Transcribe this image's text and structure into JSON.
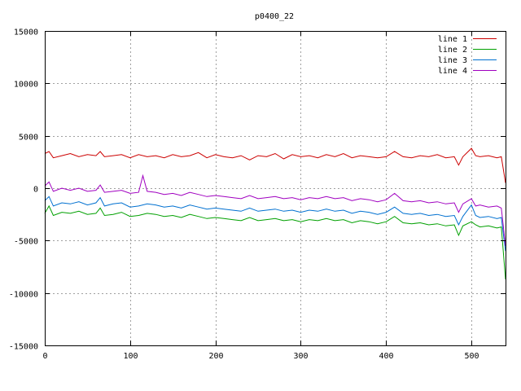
{
  "chart_data": {
    "type": "line",
    "title": "p0400_22",
    "xlabel": "",
    "ylabel": "",
    "xlim": [
      0,
      540
    ],
    "ylim": [
      -15000,
      15000
    ],
    "xticks": [
      0,
      100,
      200,
      300,
      400,
      500
    ],
    "yticks": [
      -15000,
      -10000,
      -5000,
      0,
      5000,
      10000,
      15000
    ],
    "grid": true,
    "legend": "top-right",
    "series": [
      {
        "name": "line 1",
        "color": "#cc0000",
        "x": [
          0,
          5,
          10,
          20,
          30,
          40,
          50,
          60,
          65,
          70,
          80,
          90,
          100,
          110,
          120,
          130,
          140,
          150,
          160,
          170,
          180,
          190,
          200,
          210,
          220,
          230,
          240,
          250,
          260,
          270,
          280,
          290,
          300,
          310,
          320,
          330,
          340,
          350,
          360,
          370,
          380,
          390,
          400,
          410,
          420,
          430,
          440,
          450,
          460,
          470,
          480,
          485,
          490,
          500,
          505,
          510,
          520,
          530,
          535,
          540
        ],
        "y": [
          3300,
          3500,
          2900,
          3100,
          3300,
          3000,
          3200,
          3100,
          3500,
          3000,
          3100,
          3200,
          2900,
          3200,
          3000,
          3100,
          2900,
          3200,
          3000,
          3100,
          3400,
          2900,
          3200,
          3000,
          2900,
          3100,
          2700,
          3100,
          3000,
          3300,
          2800,
          3200,
          3000,
          3100,
          2900,
          3200,
          3000,
          3300,
          2900,
          3100,
          3000,
          2900,
          3000,
          3500,
          3000,
          2900,
          3100,
          3000,
          3200,
          2900,
          3000,
          2200,
          3000,
          3800,
          3100,
          3000,
          3100,
          2900,
          3000,
          500
        ]
      },
      {
        "name": "line 2",
        "color": "#00a000",
        "x": [
          0,
          5,
          10,
          20,
          30,
          40,
          50,
          60,
          65,
          70,
          80,
          90,
          100,
          110,
          120,
          130,
          140,
          150,
          160,
          170,
          180,
          190,
          200,
          210,
          220,
          230,
          240,
          250,
          260,
          270,
          280,
          290,
          300,
          310,
          320,
          330,
          340,
          350,
          360,
          370,
          380,
          390,
          400,
          410,
          420,
          430,
          440,
          450,
          460,
          470,
          480,
          485,
          490,
          500,
          505,
          510,
          520,
          530,
          535,
          540
        ],
        "y": [
          -2400,
          -1700,
          -2600,
          -2300,
          -2400,
          -2200,
          -2500,
          -2400,
          -1900,
          -2600,
          -2500,
          -2300,
          -2700,
          -2600,
          -2400,
          -2500,
          -2700,
          -2600,
          -2800,
          -2500,
          -2700,
          -2900,
          -2800,
          -2900,
          -3000,
          -3100,
          -2800,
          -3100,
          -3000,
          -2900,
          -3100,
          -3000,
          -3200,
          -3000,
          -3100,
          -2900,
          -3100,
          -3000,
          -3300,
          -3100,
          -3200,
          -3400,
          -3200,
          -2700,
          -3300,
          -3400,
          -3300,
          -3500,
          -3400,
          -3600,
          -3500,
          -4500,
          -3600,
          -3200,
          -3500,
          -3700,
          -3600,
          -3800,
          -3700,
          -8700
        ]
      },
      {
        "name": "line 3",
        "color": "#0070d0",
        "x": [
          0,
          5,
          10,
          20,
          30,
          40,
          50,
          60,
          65,
          70,
          80,
          90,
          100,
          110,
          120,
          130,
          140,
          150,
          160,
          170,
          180,
          190,
          200,
          210,
          220,
          230,
          240,
          250,
          260,
          270,
          280,
          290,
          300,
          310,
          320,
          330,
          340,
          350,
          360,
          370,
          380,
          390,
          400,
          410,
          420,
          430,
          440,
          450,
          460,
          470,
          480,
          485,
          490,
          500,
          505,
          510,
          520,
          530,
          535,
          540
        ],
        "y": [
          -1200,
          -800,
          -1700,
          -1400,
          -1500,
          -1300,
          -1600,
          -1400,
          -900,
          -1700,
          -1500,
          -1400,
          -1800,
          -1700,
          -1500,
          -1600,
          -1800,
          -1700,
          -1900,
          -1600,
          -1800,
          -2000,
          -1900,
          -2000,
          -2100,
          -2200,
          -1900,
          -2200,
          -2100,
          -2000,
          -2200,
          -2100,
          -2300,
          -2100,
          -2200,
          -2000,
          -2200,
          -2100,
          -2400,
          -2200,
          -2300,
          -2500,
          -2300,
          -1800,
          -2400,
          -2500,
          -2400,
          -2600,
          -2500,
          -2700,
          -2600,
          -3500,
          -2700,
          -1600,
          -2600,
          -2800,
          -2700,
          -2900,
          -2800,
          -6000
        ]
      },
      {
        "name": "line 4",
        "color": "#a000c0",
        "x": [
          0,
          5,
          10,
          20,
          30,
          40,
          50,
          60,
          65,
          70,
          80,
          90,
          100,
          110,
          115,
          120,
          130,
          140,
          150,
          160,
          170,
          180,
          190,
          200,
          210,
          220,
          230,
          240,
          250,
          260,
          270,
          280,
          290,
          300,
          310,
          320,
          330,
          340,
          350,
          360,
          370,
          380,
          390,
          400,
          410,
          420,
          430,
          440,
          450,
          460,
          470,
          480,
          485,
          490,
          500,
          505,
          510,
          520,
          530,
          535,
          540
        ],
        "y": [
          200,
          600,
          -300,
          0,
          -200,
          0,
          -300,
          -200,
          300,
          -400,
          -300,
          -200,
          -500,
          -400,
          1200,
          -300,
          -400,
          -600,
          -500,
          -700,
          -400,
          -600,
          -800,
          -700,
          -800,
          -900,
          -1000,
          -700,
          -1000,
          -900,
          -800,
          -1000,
          -900,
          -1100,
          -900,
          -1000,
          -800,
          -1000,
          -900,
          -1200,
          -1000,
          -1100,
          -1300,
          -1100,
          -500,
          -1200,
          -1300,
          -1200,
          -1400,
          -1300,
          -1500,
          -1400,
          -2300,
          -1500,
          -1000,
          -1700,
          -1600,
          -1800,
          -1700,
          -1900,
          -5500
        ]
      }
    ]
  }
}
